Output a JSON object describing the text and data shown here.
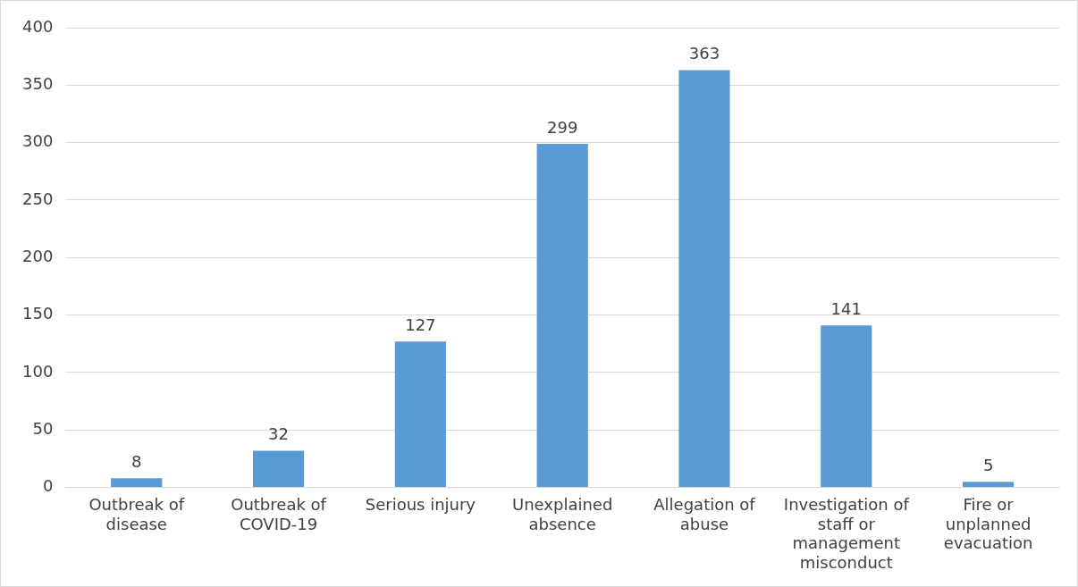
{
  "chart_data": {
    "type": "bar",
    "categories": [
      "Outbreak of disease",
      "Outbreak of COVID-19",
      "Serious injury",
      "Unexplained absence",
      "Allegation of abuse",
      "Investigation of staff or management misconduct",
      "Fire or unplanned evacuation"
    ],
    "values": [
      8,
      32,
      127,
      299,
      363,
      141,
      5
    ],
    "color": "#5b9bd5",
    "ylim": [
      0,
      400
    ],
    "yticks": [
      0,
      50,
      100,
      150,
      200,
      250,
      300,
      350,
      400
    ],
    "grid": "y",
    "data_labels": true,
    "legend": false
  }
}
